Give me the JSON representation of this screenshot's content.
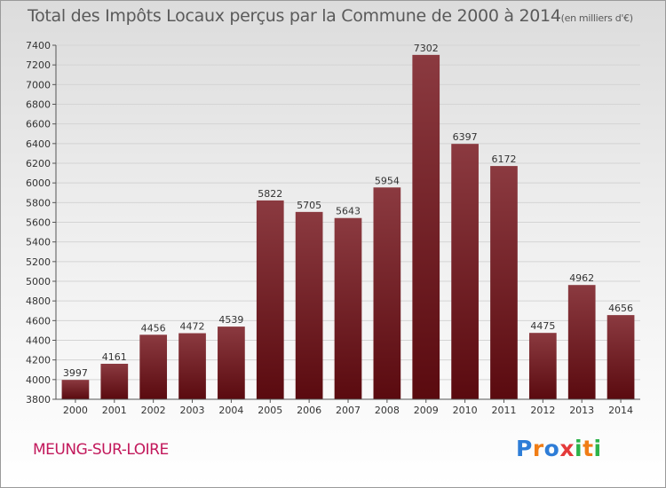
{
  "chart_data": {
    "type": "bar",
    "title": "Total des Impôts Locaux perçus par la Commune de 2000 à 2014",
    "title_unit": "(en milliers d'€)",
    "categories": [
      "2000",
      "2001",
      "2002",
      "2003",
      "2004",
      "2005",
      "2006",
      "2007",
      "2008",
      "2009",
      "2010",
      "2011",
      "2012",
      "2013",
      "2014"
    ],
    "values": [
      3997,
      4161,
      4456,
      4472,
      4539,
      5822,
      5705,
      5643,
      5954,
      7302,
      6397,
      6172,
      4475,
      4962,
      4656
    ],
    "ylim": [
      3800,
      7400
    ],
    "yticks": [
      3800,
      4000,
      4200,
      4400,
      4600,
      4800,
      5000,
      5200,
      5400,
      5600,
      5800,
      6000,
      6200,
      6400,
      6600,
      6800,
      7000,
      7200,
      7400
    ],
    "grid": true,
    "bar_color_top": "#8b3a40",
    "bar_color_bottom": "#5a0a0f"
  },
  "footer": {
    "commune": "MEUNG-SUR-LOIRE",
    "logo_letters": [
      {
        "ch": "P",
        "color": "#2e7dd7"
      },
      {
        "ch": "r",
        "color": "#f07d16"
      },
      {
        "ch": "o",
        "color": "#2e7dd7"
      },
      {
        "ch": "x",
        "color": "#e43a3a"
      },
      {
        "ch": "i",
        "color": "#2db34a"
      },
      {
        "ch": "t",
        "color": "#f07d16"
      },
      {
        "ch": "i",
        "color": "#2db34a"
      }
    ]
  }
}
